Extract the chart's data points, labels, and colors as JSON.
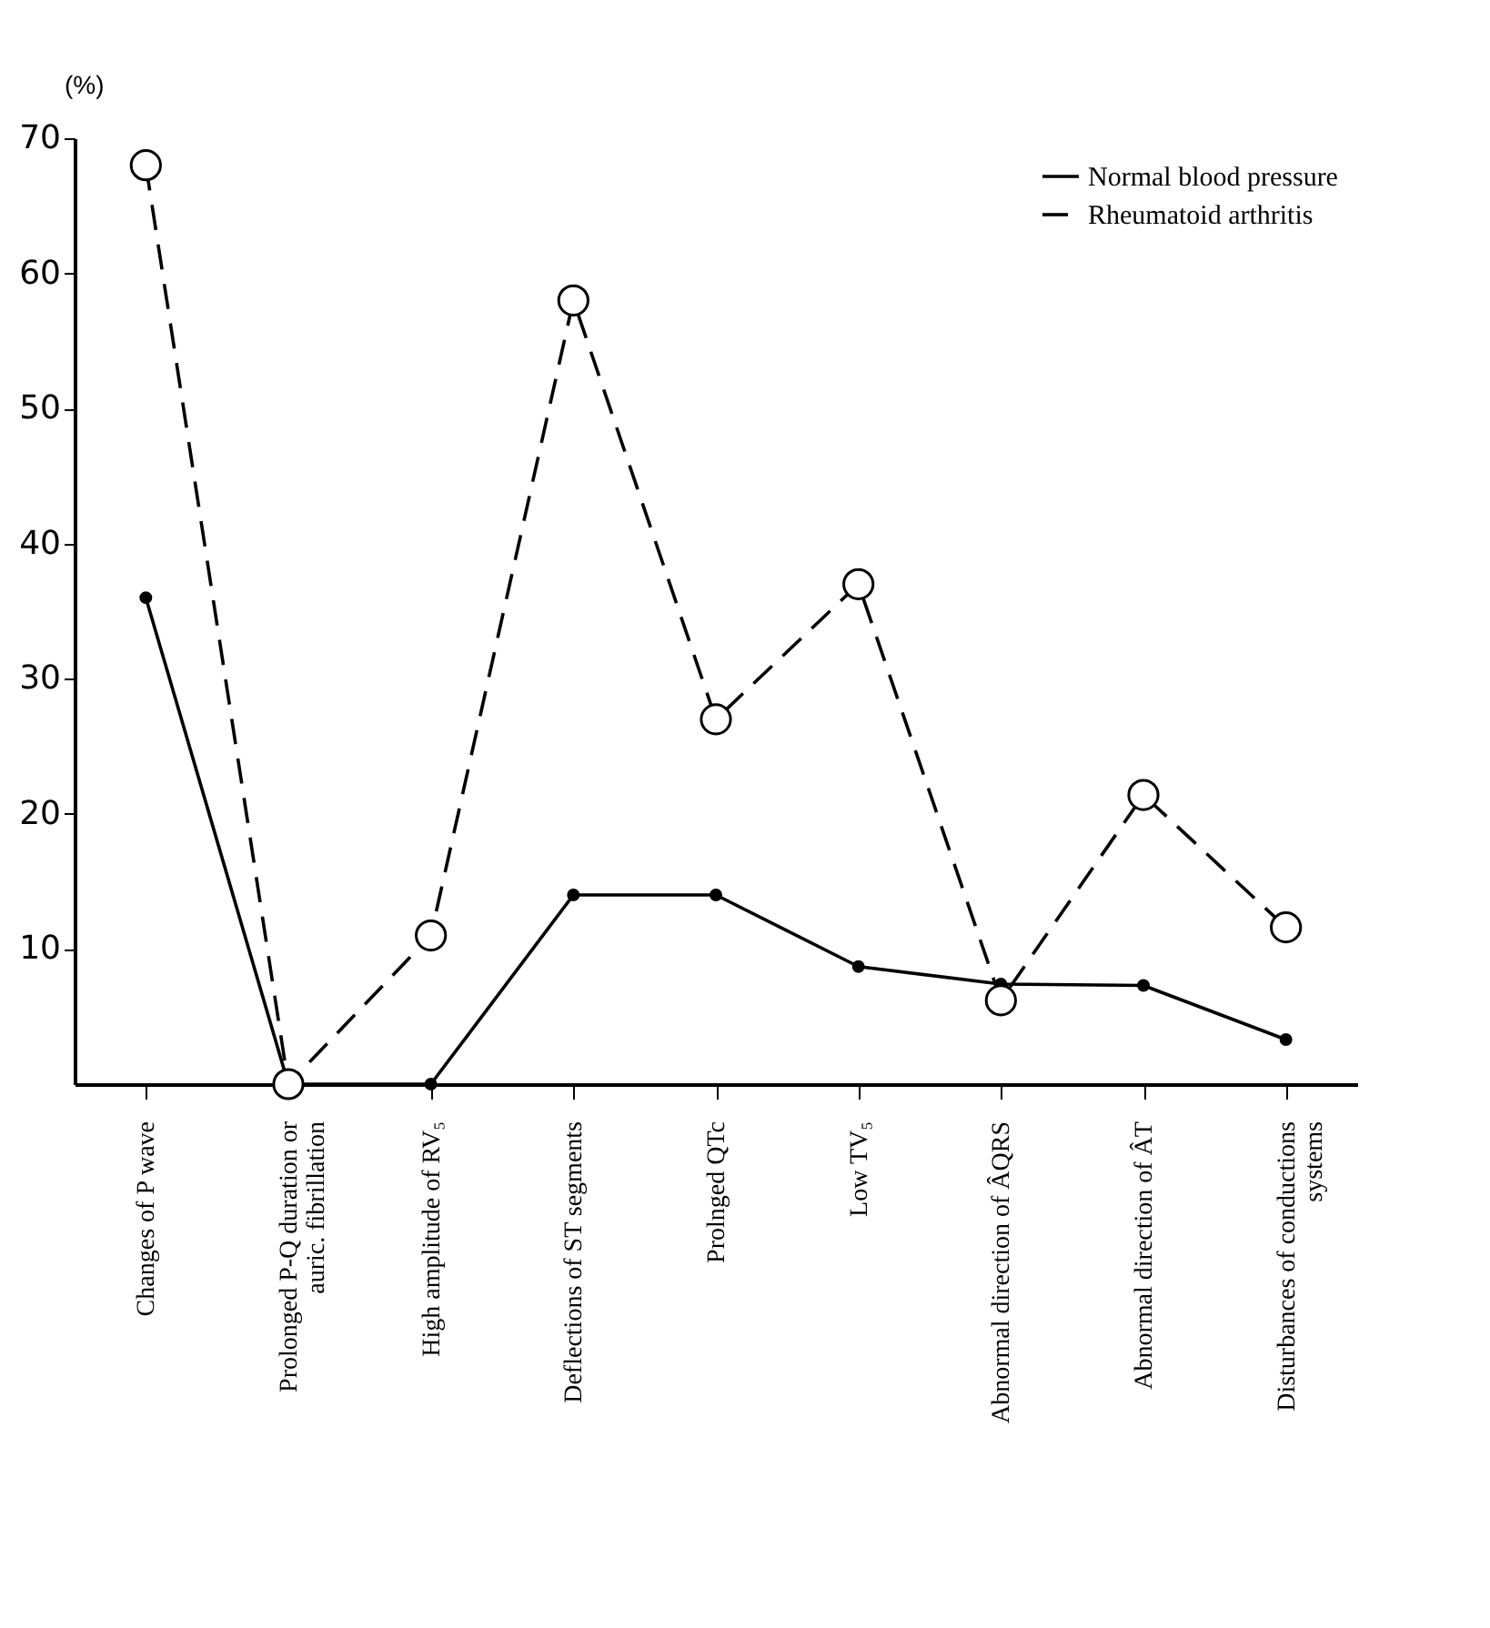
{
  "chart_data": {
    "type": "line",
    "ylabel": "(%)",
    "categories": [
      "Changes of P wave",
      "Prolonged P-Q duration or\nauric. fibrillation",
      "High amplitude of RV₅",
      "Deflections of ST segments",
      "Prolnged QTc",
      "Low TV₅",
      "Abnormal direction of ÂQRS",
      "Abnormal direction of ÂT",
      "Disturbances of conductions\nsystems"
    ],
    "series": [
      {
        "name": "Normal blood pressure",
        "color": "#000000",
        "line_style": "solid",
        "values": [
          36,
          0,
          0,
          14,
          14,
          8.7,
          7.4,
          7.3,
          3.3
        ]
      },
      {
        "name": "Rheumatoid arthritis",
        "color": "#000000",
        "line_style": "dashed",
        "values": [
          68,
          0,
          11,
          58,
          27,
          37,
          6.2,
          21.4,
          11.6
        ]
      }
    ],
    "ylim": [
      0,
      70
    ],
    "yticks": [
      10,
      20,
      30,
      40,
      50,
      60,
      70
    ],
    "grid": false,
    "legend": "top right",
    "marker": "circle"
  }
}
